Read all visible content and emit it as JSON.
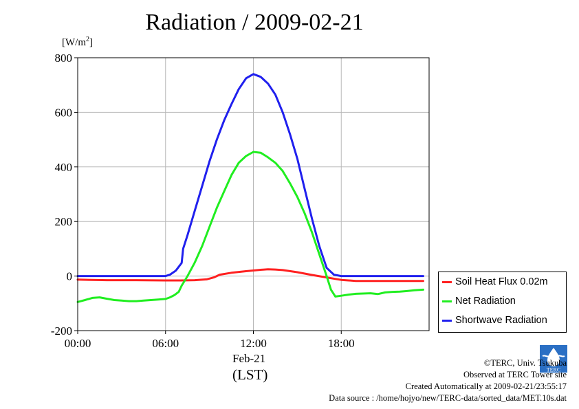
{
  "chart_data": {
    "type": "line",
    "title": "Radiation / 2009-02-21",
    "ylabel_unit_prefix": "[W/m",
    "ylabel_unit_exp": "2",
    "ylabel_unit_suffix": "]",
    "xlabel_date": "Feb-21",
    "xlabel_zone": "(LST)",
    "ylim": [
      -200,
      800
    ],
    "xlim": [
      0,
      24
    ],
    "yticks": [
      -200,
      0,
      200,
      400,
      600,
      800
    ],
    "ytick_labels": [
      "-200",
      "0",
      "200",
      "400",
      "600",
      "800"
    ],
    "xticks": [
      0,
      6,
      12,
      18
    ],
    "xtick_labels": [
      "00:00",
      "06:00",
      "12:00",
      "18:00"
    ],
    "grid": true,
    "legend_position": "bottom-right outside",
    "series": [
      {
        "name": "Soil Heat Flux 0.02m",
        "color": "#ff2020",
        "points": [
          [
            0,
            -13
          ],
          [
            2,
            -15
          ],
          [
            4,
            -15
          ],
          [
            6,
            -16
          ],
          [
            7,
            -16
          ],
          [
            8,
            -15
          ],
          [
            8.8,
            -12
          ],
          [
            9.3,
            -5
          ],
          [
            9.7,
            5
          ],
          [
            10.5,
            12
          ],
          [
            11.5,
            18
          ],
          [
            12.5,
            23
          ],
          [
            13,
            25
          ],
          [
            13.5,
            24
          ],
          [
            14,
            22
          ],
          [
            15,
            14
          ],
          [
            16,
            4
          ],
          [
            17,
            -5
          ],
          [
            18,
            -14
          ],
          [
            19,
            -18
          ],
          [
            21,
            -18
          ],
          [
            23.6,
            -18
          ]
        ]
      },
      {
        "name": "Net Radiation",
        "color": "#20ee20",
        "points": [
          [
            0,
            -95
          ],
          [
            0.5,
            -88
          ],
          [
            1,
            -80
          ],
          [
            1.5,
            -78
          ],
          [
            2,
            -83
          ],
          [
            2.5,
            -88
          ],
          [
            3,
            -90
          ],
          [
            3.5,
            -92
          ],
          [
            4,
            -92
          ],
          [
            4.5,
            -90
          ],
          [
            5,
            -88
          ],
          [
            5.5,
            -86
          ],
          [
            6,
            -84
          ],
          [
            6.3,
            -78
          ],
          [
            6.6,
            -70
          ],
          [
            6.9,
            -58
          ],
          [
            7.1,
            -35
          ],
          [
            7.5,
            0
          ],
          [
            8,
            50
          ],
          [
            8.5,
            110
          ],
          [
            9,
            180
          ],
          [
            9.5,
            250
          ],
          [
            10,
            310
          ],
          [
            10.5,
            370
          ],
          [
            11,
            415
          ],
          [
            11.5,
            440
          ],
          [
            12,
            455
          ],
          [
            12.5,
            452
          ],
          [
            13,
            435
          ],
          [
            13.5,
            415
          ],
          [
            14,
            385
          ],
          [
            14.5,
            340
          ],
          [
            15,
            290
          ],
          [
            15.5,
            230
          ],
          [
            16,
            160
          ],
          [
            16.5,
            80
          ],
          [
            17,
            0
          ],
          [
            17.3,
            -50
          ],
          [
            17.6,
            -75
          ],
          [
            18,
            -72
          ],
          [
            18.5,
            -68
          ],
          [
            19,
            -65
          ],
          [
            19.5,
            -64
          ],
          [
            20,
            -63
          ],
          [
            20.5,
            -66
          ],
          [
            21,
            -60
          ],
          [
            21.5,
            -58
          ],
          [
            22,
            -57
          ],
          [
            22.5,
            -55
          ],
          [
            23,
            -52
          ],
          [
            23.6,
            -50
          ]
        ]
      },
      {
        "name": "Shortwave Radiation",
        "color": "#2020ee",
        "points": [
          [
            0,
            0
          ],
          [
            2,
            0
          ],
          [
            4,
            0
          ],
          [
            6,
            0
          ],
          [
            6.3,
            5
          ],
          [
            6.7,
            20
          ],
          [
            7.1,
            48
          ],
          [
            7.2,
            100
          ],
          [
            7.5,
            150
          ],
          [
            8,
            240
          ],
          [
            8.5,
            330
          ],
          [
            9,
            420
          ],
          [
            9.5,
            500
          ],
          [
            10,
            570
          ],
          [
            10.5,
            630
          ],
          [
            11,
            685
          ],
          [
            11.5,
            725
          ],
          [
            12,
            740
          ],
          [
            12.5,
            730
          ],
          [
            13,
            705
          ],
          [
            13.5,
            665
          ],
          [
            14,
            600
          ],
          [
            14.5,
            520
          ],
          [
            15,
            430
          ],
          [
            15.5,
            320
          ],
          [
            16,
            210
          ],
          [
            16.5,
            110
          ],
          [
            17,
            30
          ],
          [
            17.5,
            5
          ],
          [
            18,
            0
          ],
          [
            19,
            0
          ],
          [
            21,
            0
          ],
          [
            23.6,
            0
          ]
        ]
      }
    ]
  },
  "footer": {
    "copyright": "©TERC, Univ. Tsukuba",
    "site": "Observed at TERC Tower site",
    "created": "Created Automatically at 2009-02-21/23:55:17",
    "source": "Data source : /home/hojyo/new/TERC-data/sorted_data/MET.10s.dat"
  },
  "logo_text": "TERC"
}
